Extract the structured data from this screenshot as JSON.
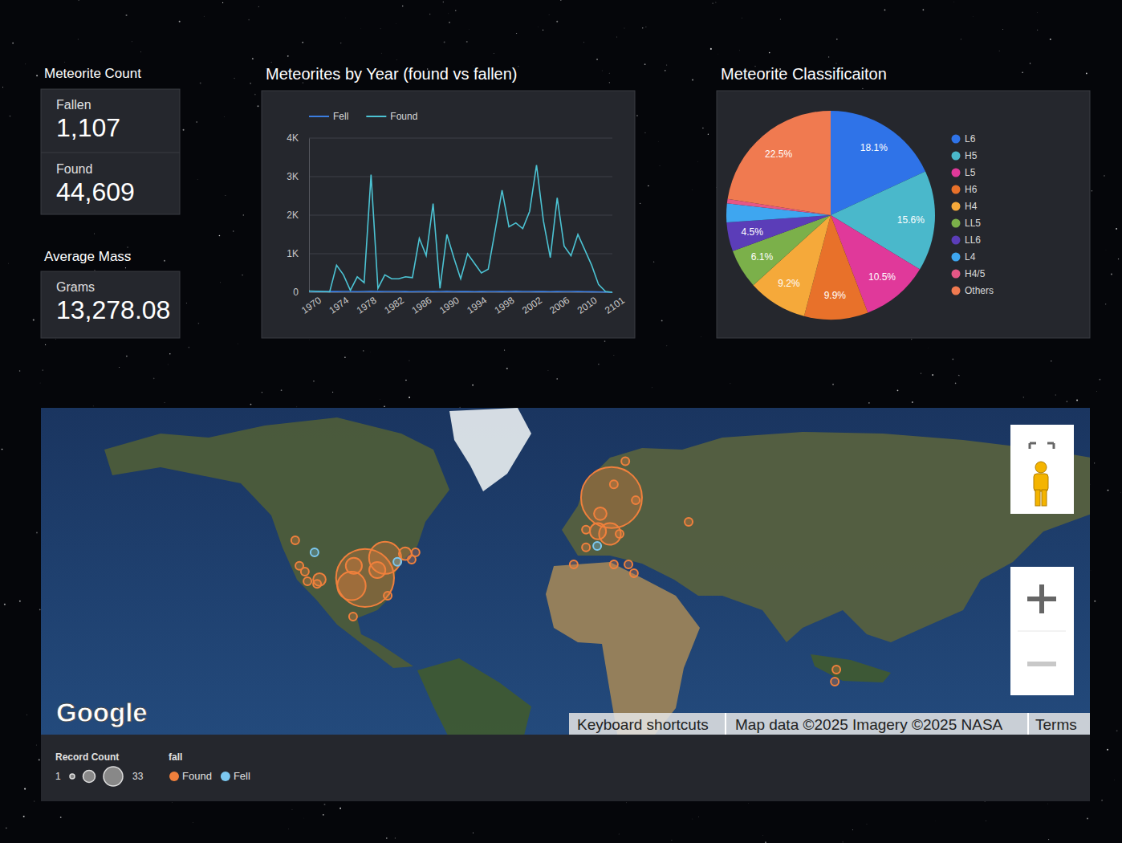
{
  "kpi": {
    "count_title": "Meteorite Count",
    "cards": [
      {
        "label": "Fallen",
        "value": "1,107"
      },
      {
        "label": "Found",
        "value": "44,609"
      }
    ],
    "mass_title": "Average Mass",
    "mass_card": {
      "label": "Grams",
      "value": "13,278.08"
    }
  },
  "chart_data": [
    {
      "type": "line",
      "title": "Meteorites by Year (found vs fallen)",
      "categories": [
        "1970",
        null,
        null,
        null,
        "1974",
        null,
        null,
        null,
        "1978",
        null,
        null,
        null,
        "1982",
        null,
        null,
        null,
        "1986",
        null,
        null,
        null,
        "1990",
        null,
        null,
        null,
        "1994",
        null,
        null,
        null,
        "1998",
        null,
        null,
        null,
        "2002",
        null,
        null,
        null,
        "2006",
        null,
        null,
        null,
        "2010",
        null,
        null,
        null,
        "2101"
      ],
      "series": [
        {
          "name": "Fell",
          "color": "#3b7de0",
          "values": [
            25,
            20,
            15,
            20,
            18,
            22,
            20,
            15,
            20,
            25,
            18,
            20,
            22,
            20,
            18,
            15,
            20,
            22,
            18,
            20,
            25,
            20,
            18,
            20,
            15,
            18,
            20,
            22,
            18,
            20,
            25,
            20,
            22,
            18,
            20,
            15,
            18,
            20,
            22,
            18,
            15,
            12,
            10,
            5,
            0
          ]
        },
        {
          "name": "Found",
          "color": "#4cc3d3",
          "values": [
            30,
            25,
            20,
            10,
            700,
            450,
            50,
            400,
            250,
            3050,
            100,
            450,
            350,
            350,
            400,
            380,
            1400,
            950,
            2300,
            100,
            1500,
            900,
            350,
            1000,
            750,
            500,
            600,
            1600,
            2650,
            1700,
            1800,
            1650,
            2100,
            3300,
            1850,
            900,
            2450,
            1200,
            950,
            1500,
            1100,
            700,
            200,
            20,
            0
          ]
        }
      ],
      "ylim": [
        0,
        4000
      ],
      "yticks": [
        0,
        {
          "value": 1000,
          "label": "1K"
        },
        {
          "value": 2000,
          "label": "2K"
        },
        {
          "value": 3000,
          "label": "3K"
        },
        {
          "value": 4000,
          "label": "4K"
        }
      ],
      "grid": true,
      "legend": "top"
    },
    {
      "type": "pie",
      "title": "Meteorite Classificaiton",
      "categories": [
        "L6",
        "H5",
        "L5",
        "H6",
        "H4",
        "LL5",
        "LL6",
        "L4",
        "H4/5",
        "Others"
      ],
      "values": [
        18.1,
        15.6,
        10.5,
        9.9,
        9.2,
        6.1,
        4.5,
        2.9,
        0.7,
        22.5
      ],
      "value_labels": [
        "18.1%",
        "15.6%",
        "10.5%",
        "9.9%",
        "9.2%",
        "6.1%",
        "4.5%",
        null,
        null,
        "22.5%"
      ],
      "colors": [
        "#2f73e8",
        "#4ab8cb",
        "#e0399a",
        "#e8712a",
        "#f5a93a",
        "#7bb04a",
        "#5b3db8",
        "#3ea6f0",
        "#e55786",
        "#f07a50"
      ],
      "data_labels": true,
      "legend": "right"
    },
    {
      "type": "bubble_map",
      "attribution": {
        "logo": "Google",
        "shortcuts": "Keyboard shortcuts",
        "map_data": "Map data ©2025 Imagery ©2025 NASA",
        "terms": "Terms"
      },
      "size_title": "Record Count",
      "size_range": [
        1,
        33
      ],
      "color_title": "fall",
      "legend": "bottom",
      "series": [
        {
          "name": "Found",
          "color": "#f0803c",
          "lon": [
            8.3,
            -86.3,
            -78.6,
            -91.5,
            7.7,
            -90.6,
            -81.6,
            3.1,
            -103.8,
            -70.9,
            4.0,
            -113.1,
            -111.5,
            -109.4,
            -108.4,
            -66.9,
            -68.4,
            -90.9,
            -77.6,
            13.6,
            9.2,
            17.6,
            -1.5,
            11.4,
            -1.5,
            -6.2,
            9.2,
            14.8,
            16.9,
            37.9,
            94.6,
            94.0,
            -104.7
          ],
          "lat": [
            55.1,
            33.4,
            39.6,
            30.8,
            46.3,
            37.2,
            35.9,
            47.0,
            32.9,
            40.8,
            51.4,
            44.6,
            37.2,
            35.4,
            32.3,
            41.2,
            39.1,
            20.2,
            27.5,
            62.3,
            57.9,
            54.5,
            47.4,
            46.3,
            42.6,
            37.6,
            37.6,
            37.6,
            34.9,
            49.4,
            0.3,
            -4.3,
            31.5
          ],
          "size": [
            33,
            30,
            10,
            8,
            5,
            3,
            3,
            3,
            2,
            2,
            2,
            1,
            1,
            1,
            1,
            1,
            1,
            1,
            1,
            1,
            1,
            1,
            1,
            1,
            1,
            1,
            1,
            1,
            1,
            1,
            1,
            1,
            1
          ]
        },
        {
          "name": "Fell",
          "color": "#7cc8f0",
          "lon": [
            -105.7,
            -73.9,
            2.8
          ],
          "lat": [
            41.2,
            38.4,
            43.0
          ],
          "size": [
            1,
            1,
            1
          ]
        }
      ]
    }
  ]
}
